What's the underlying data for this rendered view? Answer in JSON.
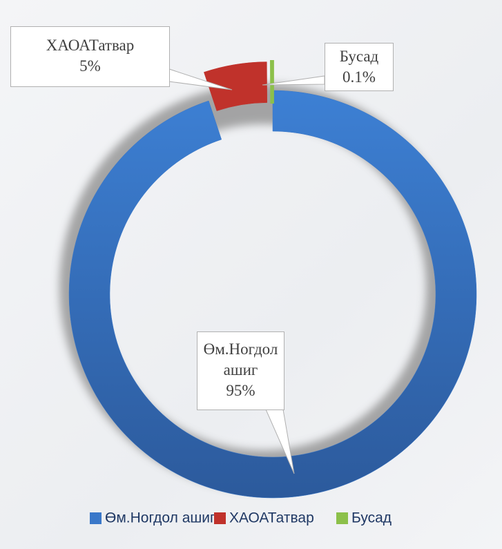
{
  "chart_data": {
    "type": "donut",
    "categories": [
      "Өм.Ногдол ашиг",
      "ХАОАТатвар",
      "Бусад"
    ],
    "values": [
      95,
      5,
      0.1
    ],
    "value_labels": [
      "95%",
      "5%",
      "0.1%"
    ],
    "colors": [
      "#3a78c9",
      "#c0322b",
      "#8cc04a"
    ],
    "legend": "bottom"
  }
}
